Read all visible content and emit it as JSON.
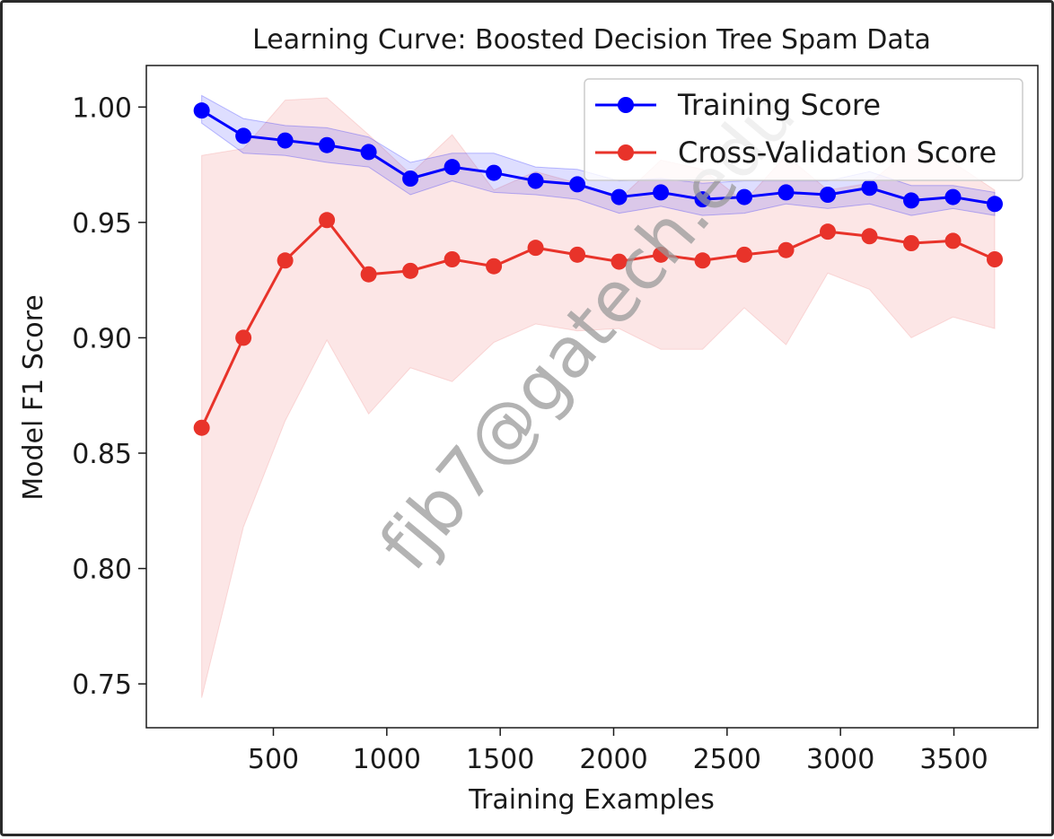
{
  "chart_data": {
    "type": "line",
    "title": "Learning Curve: Boosted Decision Tree Spam Data",
    "xlabel": "Training Examples",
    "ylabel": "Model F1 Score",
    "xlim": [
      -60,
      3870
    ],
    "ylim": [
      0.731,
      1.018
    ],
    "xticks": [
      500,
      1000,
      1500,
      2000,
      2500,
      3000,
      3500
    ],
    "xtick_labels": [
      "500",
      "1000",
      "1500",
      "2000",
      "2500",
      "3000",
      "3500"
    ],
    "yticks": [
      0.75,
      0.8,
      0.85,
      0.9,
      0.95,
      1.0
    ],
    "ytick_labels": [
      "0.75",
      "0.80",
      "0.85",
      "0.90",
      "0.95",
      "1.00"
    ],
    "legend_position": "upper-right",
    "grid": false,
    "x": [
      184,
      368,
      552,
      736,
      920,
      1104,
      1288,
      1472,
      1656,
      1840,
      2024,
      2208,
      2392,
      2576,
      2760,
      2944,
      3128,
      3312,
      3496,
      3680
    ],
    "series": [
      {
        "name": "Training Score",
        "color": "#0000ff",
        "band_color": "#0000ff",
        "values": [
          0.9985,
          0.9875,
          0.9855,
          0.9835,
          0.9805,
          0.969,
          0.974,
          0.9715,
          0.968,
          0.9665,
          0.961,
          0.963,
          0.96,
          0.961,
          0.963,
          0.962,
          0.965,
          0.9595,
          0.961,
          0.958
        ],
        "upper": [
          1.005,
          0.995,
          0.992,
          0.991,
          0.987,
          0.976,
          0.98,
          0.98,
          0.974,
          0.973,
          0.968,
          0.969,
          0.967,
          0.968,
          0.968,
          0.968,
          0.972,
          0.966,
          0.966,
          0.963
        ],
        "lower": [
          0.993,
          0.98,
          0.979,
          0.976,
          0.974,
          0.962,
          0.968,
          0.963,
          0.962,
          0.96,
          0.954,
          0.957,
          0.953,
          0.954,
          0.958,
          0.956,
          0.958,
          0.953,
          0.956,
          0.953
        ]
      },
      {
        "name": "Cross-Validation Score",
        "color": "#e8332a",
        "band_color": "#f08080",
        "values": [
          0.861,
          0.9,
          0.9335,
          0.951,
          0.9275,
          0.929,
          0.934,
          0.931,
          0.939,
          0.936,
          0.933,
          0.936,
          0.9335,
          0.936,
          0.938,
          0.946,
          0.944,
          0.941,
          0.942,
          0.934
        ],
        "upper": [
          0.979,
          0.982,
          1.003,
          1.004,
          0.988,
          0.971,
          0.988,
          0.964,
          0.972,
          0.967,
          0.96,
          0.977,
          0.973,
          0.959,
          0.979,
          0.964,
          0.967,
          0.982,
          0.976,
          0.964
        ],
        "lower": [
          0.744,
          0.818,
          0.864,
          0.899,
          0.867,
          0.887,
          0.881,
          0.898,
          0.906,
          0.903,
          0.904,
          0.895,
          0.895,
          0.913,
          0.897,
          0.928,
          0.921,
          0.9,
          0.909,
          0.904
        ]
      }
    ]
  },
  "watermark": "fjb7@gatech.edu"
}
